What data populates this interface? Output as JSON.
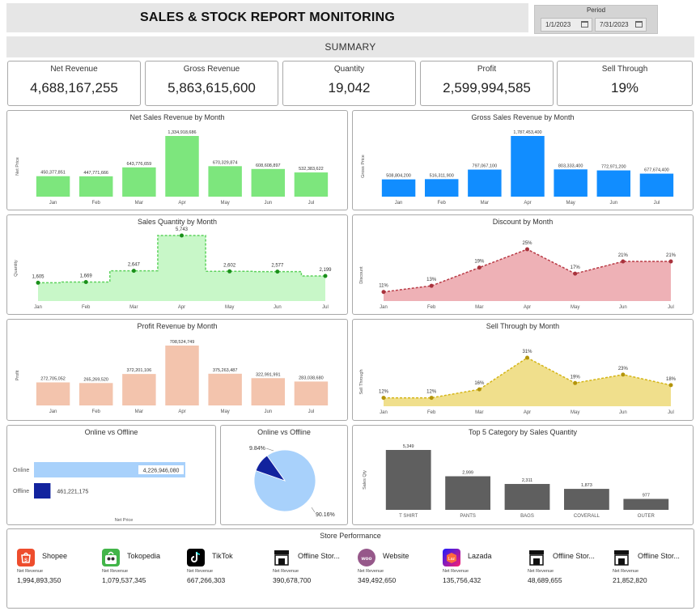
{
  "header": {
    "title": "SALES & STOCK REPORT MONITORING"
  },
  "period": {
    "label": "Period",
    "start": "1/1/2023",
    "end": "7/31/2023"
  },
  "summary_label": "SUMMARY",
  "kpis": [
    {
      "label": "Net Revenue",
      "value": "4,688,167,255"
    },
    {
      "label": "Gross Revenue",
      "value": "5,863,615,600"
    },
    {
      "label": "Quantity",
      "value": "19,042"
    },
    {
      "label": "Profit",
      "value": "2,599,994,585"
    },
    {
      "label": "Sell Through",
      "value": "19%"
    }
  ],
  "colors": {
    "green": "#7de67d",
    "blue": "#118dff",
    "green_area": "#c8f7c8",
    "green_line": "#5dd25d",
    "pink_area": "#eeb1b6",
    "red_line": "#b83a45",
    "peach": "#f3c4ad",
    "yellow_area": "#f0df8c",
    "yellow_line": "#d4b517",
    "light_blue": "#a8d1fb",
    "navy": "#12239e",
    "gray": "#5f5f5f"
  },
  "chart_data": [
    {
      "id": "net_sales",
      "type": "bar",
      "title": "Net Sales Revenue by Month",
      "ylabel": "Net Price",
      "categories": [
        "Jan",
        "Feb",
        "Mar",
        "Apr",
        "May",
        "Jun",
        "Jul"
      ],
      "values": [
        450377851,
        447771666,
        643776659,
        1334918686,
        670329874,
        608608897,
        532383622
      ],
      "labels": [
        "450,377,851",
        "447,771,666",
        "643,776,659",
        "1,334,918,686",
        "670,329,874",
        "608,608,897",
        "532,383,622"
      ]
    },
    {
      "id": "gross_sales",
      "type": "bar",
      "title": "Gross Sales Revenue by Month",
      "ylabel": "Gross Price",
      "categories": [
        "Jan",
        "Feb",
        "Mar",
        "Apr",
        "May",
        "Jun",
        "Jul"
      ],
      "values": [
        508804200,
        516311900,
        797067100,
        1787453400,
        803333400,
        772971200,
        677674400
      ],
      "labels": [
        "508,804,200",
        "516,311,900",
        "797,067,100",
        "1,787,453,400",
        "803,333,400",
        "772,971,200",
        "677,674,400"
      ]
    },
    {
      "id": "sales_qty",
      "type": "area",
      "title": "Sales Quantity by Month",
      "ylabel": "Quantity",
      "categories": [
        "Jan",
        "Feb",
        "Mar",
        "Apr",
        "May",
        "Jun",
        "Jul"
      ],
      "values": [
        1605,
        1669,
        2647,
        5743,
        2602,
        2577,
        2199
      ],
      "labels": [
        "1,605",
        "1,669",
        "2,647",
        "5,743",
        "2,602",
        "2,577",
        "2,199"
      ]
    },
    {
      "id": "discount",
      "type": "area",
      "title": "Discount by Month",
      "ylabel": "Discount",
      "categories": [
        "Jan",
        "Feb",
        "Mar",
        "Apr",
        "May",
        "Jun",
        "Jul"
      ],
      "values": [
        11,
        13,
        19,
        25,
        17,
        21,
        21
      ],
      "labels": [
        "11%",
        "13%",
        "19%",
        "25%",
        "17%",
        "21%",
        "21%"
      ]
    },
    {
      "id": "profit",
      "type": "bar",
      "title": "Profit Revenue by Month",
      "ylabel": "Profit",
      "categories": [
        "Jan",
        "Feb",
        "Mar",
        "Apr",
        "May",
        "Jun",
        "Jul"
      ],
      "values": [
        272705052,
        265269520,
        372201106,
        708524749,
        375263487,
        322991991,
        283038680
      ],
      "labels": [
        "272,705,052",
        "265,269,520",
        "372,201,106",
        "708,524,749",
        "375,263,487",
        "322,991,991",
        "283,038,680"
      ]
    },
    {
      "id": "sell_through",
      "type": "area",
      "title": "Sell Through by Month",
      "ylabel": "Sell Through",
      "categories": [
        "Jan",
        "Feb",
        "Mar",
        "Apr",
        "May",
        "Jun",
        "Jul"
      ],
      "values": [
        12,
        12,
        16,
        31,
        19,
        23,
        18
      ],
      "labels": [
        "12%",
        "12%",
        "16%",
        "31%",
        "19%",
        "23%",
        "18%"
      ]
    },
    {
      "id": "online_offline_bar",
      "type": "bar",
      "title": "Online vs Offline",
      "xlabel": "Net Price",
      "categories": [
        "Online",
        "Offline"
      ],
      "values": [
        4226946080,
        461221175
      ],
      "labels": [
        "4,226,946,080",
        "461,221,175"
      ]
    },
    {
      "id": "online_offline_pie",
      "type": "pie",
      "title": "Online vs Offline",
      "categories": [
        "Online",
        "Offline"
      ],
      "values": [
        90.16,
        9.84
      ],
      "labels": [
        "90.16%",
        "9.84%"
      ]
    },
    {
      "id": "top5",
      "type": "bar",
      "title": "Top 5 Category by Sales Quantity",
      "ylabel": "Sales Qty",
      "categories": [
        "T SHIRT",
        "PANTS",
        "BAGS",
        "COVERALL",
        "OUTER"
      ],
      "values": [
        5349,
        2999,
        2311,
        1873,
        977
      ],
      "labels": [
        "5,349",
        "2,999",
        "2,311",
        "1,873",
        "977"
      ]
    }
  ],
  "store_performance": {
    "title": "Store Performance",
    "sub_label": "Net Revenue",
    "stores": [
      {
        "name": "Shopee",
        "value": "1,994,893,350",
        "icon": "shopee-icon"
      },
      {
        "name": "Tokopedia",
        "value": "1,079,537,345",
        "icon": "tokopedia-icon"
      },
      {
        "name": "TikTok",
        "value": "667,266,303",
        "icon": "tiktok-icon"
      },
      {
        "name": "Offline Stor...",
        "value": "390,678,700",
        "icon": "store-icon"
      },
      {
        "name": "Website",
        "value": "349,492,650",
        "icon": "woo-icon"
      },
      {
        "name": "Lazada",
        "value": "135,756,432",
        "icon": "lazada-icon"
      },
      {
        "name": "Offline Stor...",
        "value": "48,689,655",
        "icon": "store-icon"
      },
      {
        "name": "Offline Stor...",
        "value": "21,852,820",
        "icon": "store-icon"
      }
    ]
  }
}
